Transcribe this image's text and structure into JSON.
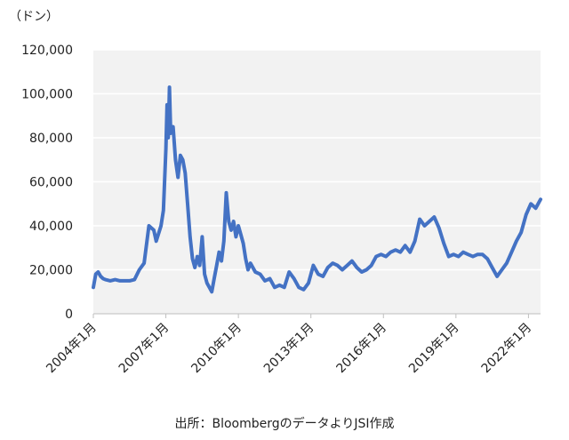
{
  "unit_label": "（ドン）",
  "source_note": "出所：BloombergのデータよりJSI作成",
  "colors": {
    "line": "#4472C4",
    "plot_bg": "#F2F2F2",
    "grid": "#FFFFFF",
    "axis": "#BFBFBF",
    "text": "#222222"
  },
  "chart_data": {
    "type": "line",
    "title": "",
    "xlabel": "",
    "ylabel": "（ドン）",
    "ylim": [
      0,
      120000
    ],
    "yticks": [
      0,
      20000,
      40000,
      60000,
      80000,
      100000,
      120000
    ],
    "ytick_labels": [
      "0",
      "20,000",
      "40,000",
      "60,000",
      "80,000",
      "100,000",
      "120,000"
    ],
    "xlim": [
      2004.0,
      2022.5
    ],
    "xticks": [
      2004,
      2007,
      2010,
      2013,
      2016,
      2019,
      2022
    ],
    "xtick_labels": [
      "2004年1月",
      "2007年1月",
      "2010年1月",
      "2013年1月",
      "2016年1月",
      "2019年1月",
      "2022年1月"
    ],
    "grid": true,
    "legend": "none",
    "series": [
      {
        "x": [
          2004.0,
          2004.1,
          2004.2,
          2004.3,
          2004.4,
          2004.5,
          2004.7,
          2004.9,
          2005.1,
          2005.3,
          2005.5,
          2005.7,
          2005.9,
          2006.1,
          2006.3,
          2006.5,
          2006.6,
          2006.8,
          2006.9,
          2007.0,
          2007.05,
          2007.1,
          2007.15,
          2007.2,
          2007.3,
          2007.4,
          2007.5,
          2007.6,
          2007.7,
          2007.8,
          2007.9,
          2008.0,
          2008.1,
          2008.2,
          2008.3,
          2008.4,
          2008.5,
          2008.6,
          2008.7,
          2008.8,
          2008.9,
          2009.0,
          2009.1,
          2009.2,
          2009.3,
          2009.4,
          2009.5,
          2009.6,
          2009.7,
          2009.8,
          2009.9,
          2010.0,
          2010.1,
          2010.2,
          2010.3,
          2010.4,
          2010.5,
          2010.7,
          2010.9,
          2011.1,
          2011.3,
          2011.5,
          2011.7,
          2011.9,
          2012.1,
          2012.3,
          2012.5,
          2012.7,
          2012.9,
          2013.1,
          2013.3,
          2013.5,
          2013.7,
          2013.9,
          2014.1,
          2014.3,
          2014.5,
          2014.7,
          2014.9,
          2015.1,
          2015.3,
          2015.5,
          2015.7,
          2015.9,
          2016.1,
          2016.3,
          2016.5,
          2016.7,
          2016.9,
          2017.1,
          2017.3,
          2017.5,
          2017.7,
          2017.9,
          2018.1,
          2018.3,
          2018.5,
          2018.7,
          2018.9,
          2019.1,
          2019.3,
          2019.5,
          2019.7,
          2019.9,
          2020.1,
          2020.3,
          2020.5,
          2020.7,
          2020.9,
          2021.1,
          2021.3,
          2021.5,
          2021.7,
          2021.9,
          2022.1,
          2022.3,
          2022.5
        ],
        "values": [
          12000,
          18000,
          19000,
          17000,
          16000,
          15500,
          15000,
          15500,
          15000,
          15000,
          15000,
          15500,
          20000,
          23000,
          40000,
          38000,
          33000,
          40000,
          47000,
          75000,
          95000,
          80000,
          103000,
          82000,
          85000,
          70000,
          62000,
          72000,
          70000,
          64000,
          50000,
          35000,
          25000,
          21000,
          26000,
          22000,
          35000,
          18000,
          14000,
          12000,
          10000,
          16000,
          22000,
          28000,
          24000,
          33000,
          55000,
          42000,
          38000,
          42000,
          35000,
          40000,
          36000,
          32000,
          25000,
          20000,
          23000,
          19000,
          18000,
          15000,
          16000,
          12000,
          13000,
          12000,
          19000,
          16000,
          12000,
          11000,
          14000,
          22000,
          18000,
          17000,
          21000,
          23000,
          22000,
          20000,
          22000,
          24000,
          21000,
          19000,
          20000,
          22000,
          26000,
          27000,
          26000,
          28000,
          29000,
          28000,
          31000,
          28000,
          33000,
          43000,
          40000,
          42000,
          44000,
          39000,
          32000,
          26000,
          27000,
          26000,
          28000,
          27000,
          26000,
          27000,
          27000,
          25000,
          21000,
          17000,
          20000,
          23000,
          28000,
          33000,
          37000,
          45000,
          50000,
          48000,
          52000
        ]
      }
    ]
  }
}
